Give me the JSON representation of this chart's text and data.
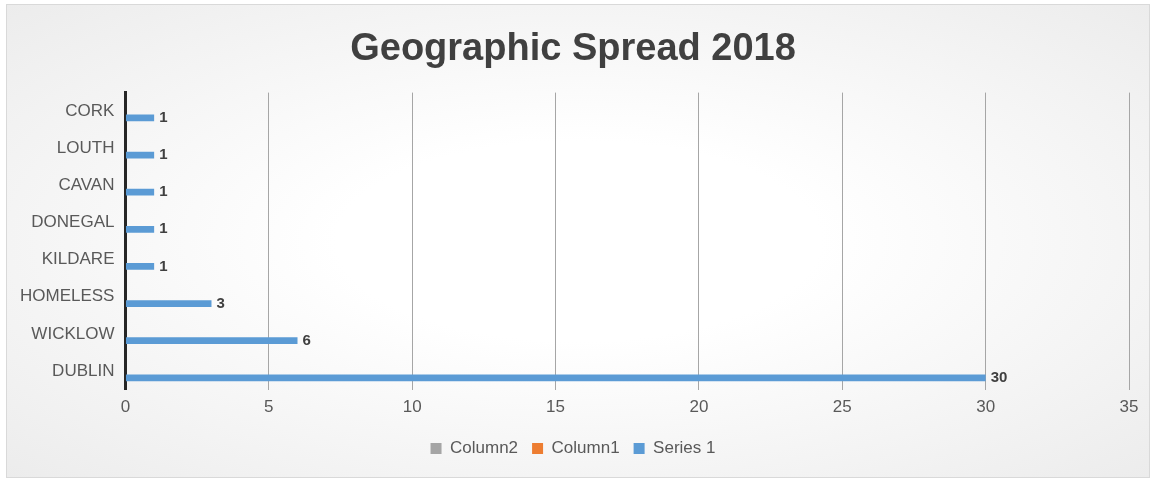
{
  "chart_data": {
    "type": "bar",
    "orientation": "horizontal",
    "title": "Geographic Spread 2018",
    "categories": [
      "CORK",
      "LOUTH",
      "CAVAN",
      "DONEGAL",
      "KILDARE",
      "HOMELESS",
      "WICKLOW",
      "DUBLIN"
    ],
    "series": [
      {
        "name": "Column2",
        "color": "#a5a5a5",
        "values": [
          null,
          null,
          null,
          null,
          null,
          null,
          null,
          null
        ]
      },
      {
        "name": "Column1",
        "color": "#ed7d31",
        "values": [
          null,
          null,
          null,
          null,
          null,
          null,
          null,
          null
        ]
      },
      {
        "name": "Series 1",
        "color": "#5b9bd5",
        "values": [
          1,
          1,
          1,
          1,
          1,
          3,
          6,
          30
        ]
      }
    ],
    "xlim": [
      0,
      35
    ],
    "xticks": [
      0,
      5,
      10,
      15,
      20,
      25,
      30,
      35
    ],
    "grid": "x",
    "legend": "bottom",
    "data_labels": true
  }
}
